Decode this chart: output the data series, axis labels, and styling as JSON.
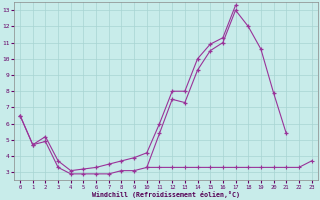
{
  "xlabel": "Windchill (Refroidissement éolien,°C)",
  "x": [
    0,
    1,
    2,
    3,
    4,
    5,
    6,
    7,
    8,
    9,
    10,
    11,
    12,
    13,
    14,
    15,
    16,
    17,
    18,
    19,
    20,
    21,
    22,
    23
  ],
  "line_zigzag": [
    6.5,
    4.7,
    4.9,
    3.3,
    2.9,
    2.9,
    2.9,
    2.9,
    3.1,
    3.1,
    3.3,
    5.4,
    7.5,
    7.3,
    9.3,
    10.5,
    11.0,
    13.0,
    12.0,
    10.6,
    7.9,
    5.4,
    null,
    null
  ],
  "line_upper": [
    6.5,
    4.7,
    5.2,
    3.7,
    3.1,
    3.2,
    3.3,
    3.5,
    3.7,
    3.9,
    4.2,
    6.0,
    8.0,
    8.0,
    10.0,
    10.9,
    11.3,
    13.3,
    null,
    null,
    null,
    null,
    null,
    null
  ],
  "line_flat": [
    null,
    null,
    null,
    null,
    null,
    null,
    null,
    null,
    null,
    null,
    3.3,
    3.3,
    3.3,
    3.3,
    3.3,
    3.3,
    3.3,
    3.3,
    3.3,
    3.3,
    3.3,
    3.3,
    3.3,
    3.7
  ],
  "color_main": "#993399",
  "bg_color": "#c8ecea",
  "grid_color": "#a8d4d2",
  "xlim": [
    -0.5,
    23.5
  ],
  "ylim": [
    2.5,
    13.5
  ],
  "yticks": [
    3,
    4,
    5,
    6,
    7,
    8,
    9,
    10,
    11,
    12,
    13
  ],
  "xticks": [
    0,
    1,
    2,
    3,
    4,
    5,
    6,
    7,
    8,
    9,
    10,
    11,
    12,
    13,
    14,
    15,
    16,
    17,
    18,
    19,
    20,
    21,
    22,
    23
  ]
}
